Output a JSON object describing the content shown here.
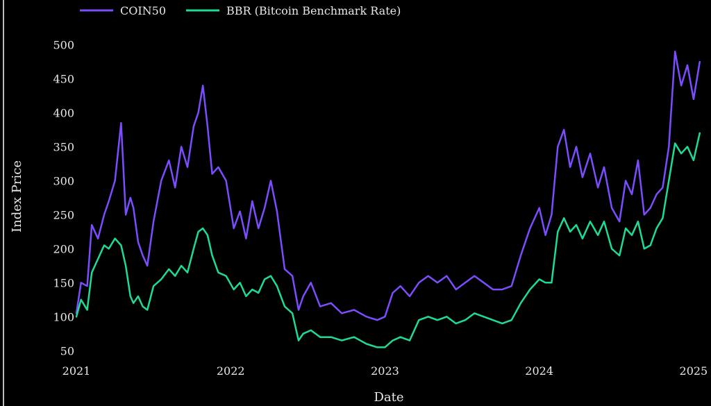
{
  "chart_data": {
    "type": "line",
    "title": "",
    "xlabel": "Date",
    "ylabel": "Index Price",
    "xlim": [
      2021.0,
      2025.05
    ],
    "ylim": [
      35,
      525
    ],
    "xticks": [
      "2021",
      "2022",
      "2023",
      "2024",
      "2025"
    ],
    "yticks": [
      "50",
      "100",
      "150",
      "200",
      "250",
      "300",
      "350",
      "400",
      "450",
      "500"
    ],
    "grid": false,
    "legend_position": "top-left",
    "background": "#000000",
    "series": [
      {
        "name": "COIN50",
        "color": "#7c4dff",
        "x": [
          2021.0,
          2021.03,
          2021.07,
          2021.1,
          2021.14,
          2021.18,
          2021.21,
          2021.25,
          2021.29,
          2021.32,
          2021.35,
          2021.37,
          2021.4,
          2021.43,
          2021.46,
          2021.5,
          2021.55,
          2021.6,
          2021.64,
          2021.68,
          2021.72,
          2021.76,
          2021.79,
          2021.82,
          2021.85,
          2021.88,
          2021.92,
          2021.97,
          2022.02,
          2022.06,
          2022.1,
          2022.14,
          2022.18,
          2022.22,
          2022.26,
          2022.3,
          2022.35,
          2022.4,
          2022.44,
          2022.47,
          2022.52,
          2022.58,
          2022.65,
          2022.72,
          2022.8,
          2022.88,
          2022.95,
          2023.0,
          2023.05,
          2023.1,
          2023.16,
          2023.22,
          2023.28,
          2023.34,
          2023.4,
          2023.46,
          2023.52,
          2023.58,
          2023.64,
          2023.7,
          2023.76,
          2023.82,
          2023.88,
          2023.94,
          2024.0,
          2024.04,
          2024.08,
          2024.12,
          2024.16,
          2024.2,
          2024.24,
          2024.28,
          2024.33,
          2024.38,
          2024.42,
          2024.47,
          2024.52,
          2024.56,
          2024.6,
          2024.64,
          2024.68,
          2024.72,
          2024.76,
          2024.8,
          2024.84,
          2024.88,
          2024.92,
          2024.96,
          2025.0,
          2025.04
        ],
        "values": [
          105,
          150,
          145,
          235,
          215,
          250,
          270,
          300,
          385,
          250,
          275,
          260,
          210,
          190,
          175,
          240,
          300,
          330,
          290,
          350,
          320,
          380,
          400,
          440,
          380,
          310,
          320,
          300,
          230,
          255,
          215,
          270,
          230,
          260,
          300,
          255,
          170,
          160,
          110,
          130,
          150,
          115,
          120,
          105,
          110,
          100,
          95,
          100,
          135,
          145,
          130,
          150,
          160,
          150,
          160,
          140,
          150,
          160,
          150,
          140,
          140,
          145,
          190,
          230,
          260,
          220,
          250,
          350,
          375,
          320,
          350,
          305,
          340,
          290,
          320,
          260,
          240,
          300,
          280,
          330,
          250,
          260,
          280,
          290,
          350,
          490,
          440,
          470,
          420,
          475
        ]
      },
      {
        "name": "BBR (Bitcoin Benchmark Rate)",
        "color": "#1ddc94",
        "x": [
          2021.0,
          2021.03,
          2021.07,
          2021.1,
          2021.14,
          2021.18,
          2021.21,
          2021.25,
          2021.29,
          2021.32,
          2021.35,
          2021.37,
          2021.4,
          2021.43,
          2021.46,
          2021.5,
          2021.55,
          2021.6,
          2021.64,
          2021.68,
          2021.72,
          2021.76,
          2021.79,
          2021.82,
          2021.85,
          2021.88,
          2021.92,
          2021.97,
          2022.02,
          2022.06,
          2022.1,
          2022.14,
          2022.18,
          2022.22,
          2022.26,
          2022.3,
          2022.35,
          2022.4,
          2022.44,
          2022.47,
          2022.52,
          2022.58,
          2022.65,
          2022.72,
          2022.8,
          2022.88,
          2022.95,
          2023.0,
          2023.05,
          2023.1,
          2023.16,
          2023.22,
          2023.28,
          2023.34,
          2023.4,
          2023.46,
          2023.52,
          2023.58,
          2023.64,
          2023.7,
          2023.76,
          2023.82,
          2023.88,
          2023.94,
          2024.0,
          2024.04,
          2024.08,
          2024.12,
          2024.16,
          2024.2,
          2024.24,
          2024.28,
          2024.33,
          2024.38,
          2024.42,
          2024.47,
          2024.52,
          2024.56,
          2024.6,
          2024.64,
          2024.68,
          2024.72,
          2024.76,
          2024.8,
          2024.84,
          2024.88,
          2024.92,
          2024.96,
          2025.0,
          2025.04
        ],
        "values": [
          100,
          125,
          110,
          165,
          185,
          205,
          200,
          215,
          205,
          175,
          130,
          120,
          130,
          115,
          110,
          145,
          155,
          170,
          160,
          175,
          165,
          200,
          225,
          230,
          220,
          190,
          165,
          160,
          140,
          150,
          130,
          140,
          135,
          155,
          160,
          145,
          115,
          105,
          65,
          75,
          80,
          70,
          70,
          65,
          70,
          60,
          55,
          55,
          65,
          70,
          65,
          95,
          100,
          95,
          100,
          90,
          95,
          105,
          100,
          95,
          90,
          95,
          120,
          140,
          155,
          150,
          150,
          225,
          245,
          225,
          235,
          215,
          240,
          220,
          240,
          200,
          190,
          230,
          220,
          240,
          200,
          205,
          230,
          245,
          300,
          355,
          340,
          350,
          330,
          370
        ]
      }
    ]
  }
}
